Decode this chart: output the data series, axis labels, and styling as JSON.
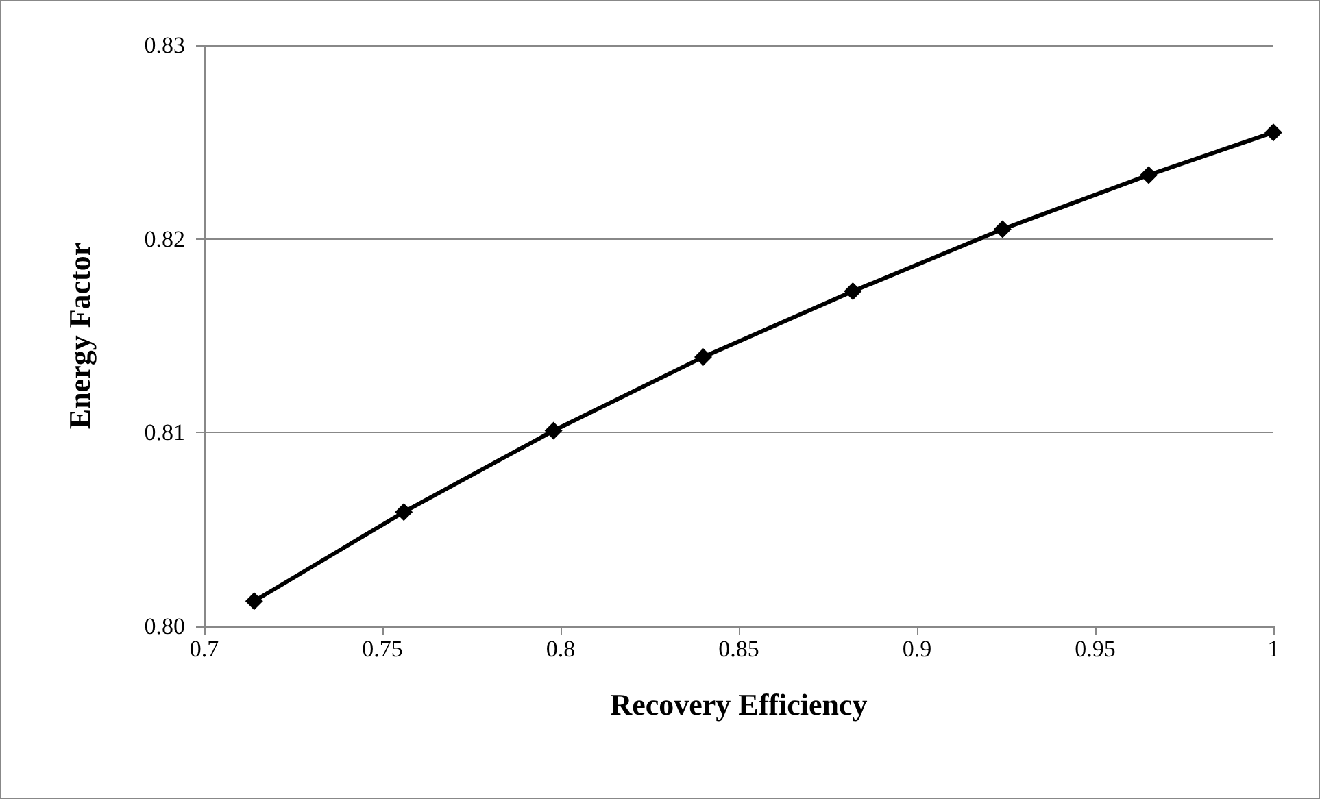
{
  "chart_data": {
    "type": "line",
    "xlabel": "Recovery Efficiency",
    "ylabel": "Energy Factor",
    "x": [
      0.714,
      0.756,
      0.798,
      0.84,
      0.882,
      0.924,
      0.965,
      1.0
    ],
    "series": [
      {
        "color": "#000000",
        "values": [
          0.8013,
          0.8059,
          0.8101,
          0.8139,
          0.8173,
          0.8205,
          0.8233,
          0.8255
        ]
      }
    ],
    "xlim": [
      0.7,
      1
    ],
    "xticks": [
      0.7,
      0.75,
      0.8,
      0.85,
      0.9,
      0.95,
      1
    ],
    "ylim": [
      0.8,
      0.83
    ],
    "yticks": [
      {
        "value": 0.8,
        "label": "0.80"
      },
      0.81,
      0.82,
      0.83
    ],
    "grid": "y",
    "marker": "diamond",
    "line_style": "solid"
  }
}
